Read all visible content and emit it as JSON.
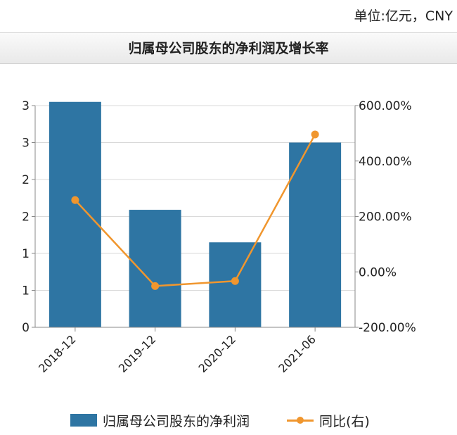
{
  "unit_label": "单位:亿元，CNY",
  "chart_data": {
    "type": "bar",
    "title": "归属母公司股东的净利润及增长率",
    "categories": [
      "2018-12",
      "2019-12",
      "2020-12",
      "2021-06"
    ],
    "series": [
      {
        "name": "归属母公司股东的净利润",
        "type": "bar",
        "axis": "left",
        "color": "#2e75a3",
        "values": [
          3.05,
          1.59,
          1.15,
          2.5
        ]
      },
      {
        "name": "同比(右)",
        "type": "line",
        "axis": "right",
        "color": "#f0962e",
        "values": [
          259,
          -51,
          -33,
          496
        ]
      }
    ],
    "y_left": {
      "ylim": [
        0,
        3
      ],
      "ticks": [
        0,
        0.5,
        1,
        1.5,
        2,
        2.5,
        3
      ],
      "tick_labels": [
        "0",
        "1",
        "1",
        "2",
        "2",
        "3",
        "3"
      ]
    },
    "y_right": {
      "ylim": [
        -200,
        600
      ],
      "ticks": [
        -200,
        0,
        200,
        400,
        600
      ],
      "tick_labels": [
        "-200.00%",
        "0.00%",
        "200.00%",
        "400.00%",
        "600.00%"
      ]
    },
    "grid": true,
    "legend_position": "bottom"
  }
}
